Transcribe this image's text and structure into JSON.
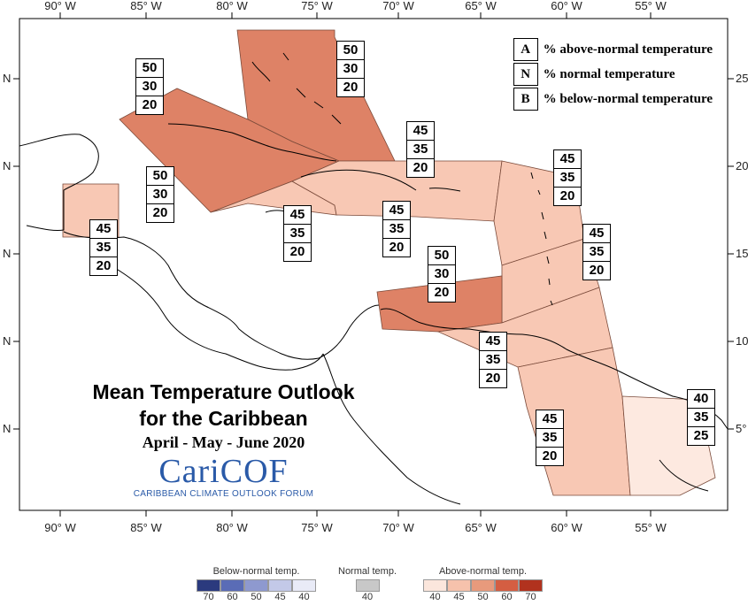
{
  "lon_ticks": [
    "90° W",
    "85° W",
    "80° W",
    "75° W",
    "70° W",
    "65° W",
    "60° W",
    "55° W"
  ],
  "lat_ticks_left": [
    "N",
    "N",
    "N",
    "N",
    "N"
  ],
  "lat_ticks_right": [
    "25",
    "20",
    "15",
    "10",
    "5°"
  ],
  "key": {
    "A": {
      "letter": "A",
      "text": "% above-normal temperature"
    },
    "N": {
      "letter": "N",
      "text": "% normal temperature"
    },
    "B": {
      "letter": "B",
      "text": "% below-normal temperature"
    }
  },
  "regions": [
    {
      "name": "bahamas",
      "A": "50",
      "N": "30",
      "B": "20",
      "color": "#de8266"
    },
    {
      "name": "cuba",
      "A": "50",
      "N": "30",
      "B": "20",
      "color": "#de8266"
    },
    {
      "name": "cayman",
      "A": "50",
      "N": "30",
      "B": "20",
      "color": "#de8266"
    },
    {
      "name": "belize",
      "A": "45",
      "N": "35",
      "B": "20",
      "color": "#f8c8b4"
    },
    {
      "name": "jamaica",
      "A": "45",
      "N": "35",
      "B": "20",
      "color": "#f8c8b4"
    },
    {
      "name": "hispaniola",
      "A": "45",
      "N": "35",
      "B": "20",
      "color": "#f8c8b4"
    },
    {
      "name": "puerto-rico",
      "A": "45",
      "N": "35",
      "B": "20",
      "color": "#f8c8b4"
    },
    {
      "name": "leeward",
      "A": "45",
      "N": "35",
      "B": "20",
      "color": "#f8c8b4"
    },
    {
      "name": "windward",
      "A": "45",
      "N": "35",
      "B": "20",
      "color": "#f8c8b4"
    },
    {
      "name": "abc-islands",
      "A": "50",
      "N": "30",
      "B": "20",
      "color": "#de8266"
    },
    {
      "name": "trinidad",
      "A": "45",
      "N": "35",
      "B": "20",
      "color": "#f8c8b4"
    },
    {
      "name": "guyana",
      "A": "45",
      "N": "35",
      "B": "20",
      "color": "#f8c8b4"
    },
    {
      "name": "suriname-guiana",
      "A": "40",
      "N": "35",
      "B": "25",
      "color": "#fde9e0"
    }
  ],
  "title": {
    "line1": "Mean Temperature Outlook",
    "line2": "for the Caribbean",
    "period": "April - May - June 2020",
    "logo": "CariCOF",
    "logo_sub": "CARIBBEAN CLIMATE OUTLOOK FORUM"
  },
  "colorbar": {
    "below": {
      "title": "Below-normal temp.",
      "ticks": [
        "70",
        "60",
        "50",
        "45",
        "40"
      ],
      "colors": [
        "#2b3a7e",
        "#5a6cb6",
        "#8e99cf",
        "#c3c9e8",
        "#e9ebf7"
      ]
    },
    "normal": {
      "title": "Normal temp.",
      "ticks": [
        "40"
      ],
      "colors": [
        "#c8c8c8"
      ]
    },
    "above": {
      "title": "Above-normal temp.",
      "ticks": [
        "40",
        "45",
        "50",
        "60",
        "70"
      ],
      "colors": [
        "#fbe6dc",
        "#f6c2ac",
        "#e89a7c",
        "#d45e42",
        "#b1321e"
      ]
    }
  }
}
